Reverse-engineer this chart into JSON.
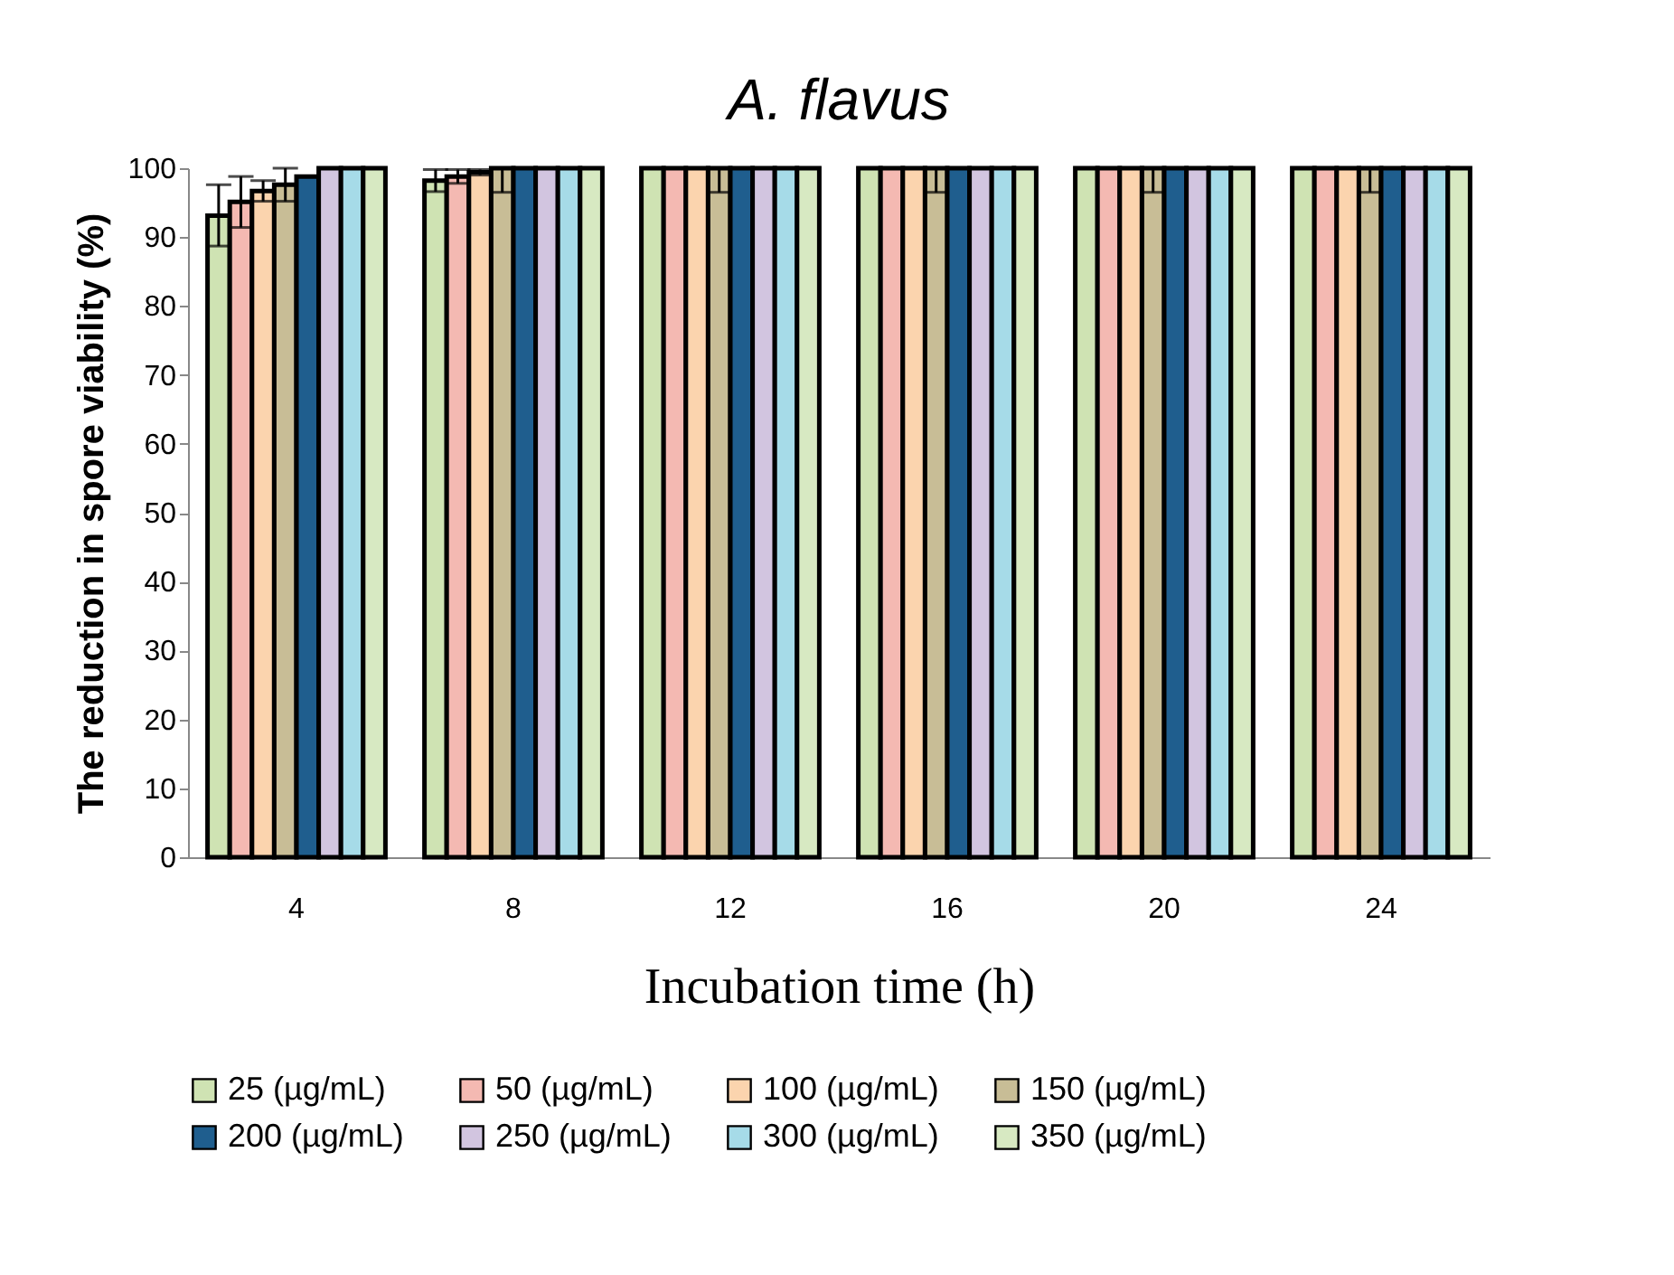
{
  "chart_data": {
    "type": "bar",
    "title": "A. flavus",
    "xlabel": "Incubation time (h)",
    "ylabel": "The reduction in spore viability (%)",
    "categories": [
      "4",
      "8",
      "12",
      "16",
      "20",
      "24"
    ],
    "series": [
      {
        "name": "25 (µg/mL)",
        "color": "#cfe3b3",
        "values": [
          93.1,
          98.2,
          100,
          100,
          100,
          100
        ],
        "errors": [
          [
            88.7,
            97.6
          ],
          [
            96.6,
            99.8
          ],
          null,
          null,
          null,
          null
        ]
      },
      {
        "name": "50 (µg/mL)",
        "color": "#f4b9b2",
        "values": [
          95.1,
          98.8,
          100,
          100,
          100,
          100
        ],
        "errors": [
          [
            91.4,
            98.8
          ],
          [
            97.8,
            99.8
          ],
          null,
          null,
          null,
          null
        ]
      },
      {
        "name": "100 (µg/mL)",
        "color": "#fbd4ae",
        "values": [
          96.7,
          99.4,
          100,
          100,
          100,
          100
        ],
        "errors": [
          [
            95.2,
            98.2
          ],
          [
            99,
            99.8
          ],
          null,
          null,
          null,
          null
        ]
      },
      {
        "name": "150 (µg/mL)",
        "color": "#c8bd96",
        "values": [
          97.6,
          100,
          100,
          100,
          100,
          100
        ],
        "errors": [
          [
            95.2,
            100
          ],
          [
            96.5,
            100
          ],
          [
            96.5,
            100
          ],
          [
            96.5,
            100
          ],
          [
            96.5,
            100
          ],
          [
            96.5,
            100
          ]
        ]
      },
      {
        "name": "200 (µg/mL)",
        "color": "#1f5e8e",
        "values": [
          98.8,
          100,
          100,
          100,
          100,
          100
        ]
      },
      {
        "name": "250 (µg/mL)",
        "color": "#d2c5e0",
        "values": [
          100,
          100,
          100,
          100,
          100,
          100
        ]
      },
      {
        "name": "300 (µg/mL)",
        "color": "#a6dbe8",
        "values": [
          100,
          100,
          100,
          100,
          100,
          100
        ]
      },
      {
        "name": "350 (µg/mL)",
        "color": "#d7e9c2",
        "values": [
          100,
          100,
          100,
          100,
          100,
          100
        ]
      }
    ],
    "ylim": [
      0,
      100
    ],
    "yticks": [
      0,
      10,
      20,
      30,
      40,
      50,
      60,
      70,
      80,
      90,
      100
    ],
    "grid": false,
    "legend": "bottom"
  }
}
